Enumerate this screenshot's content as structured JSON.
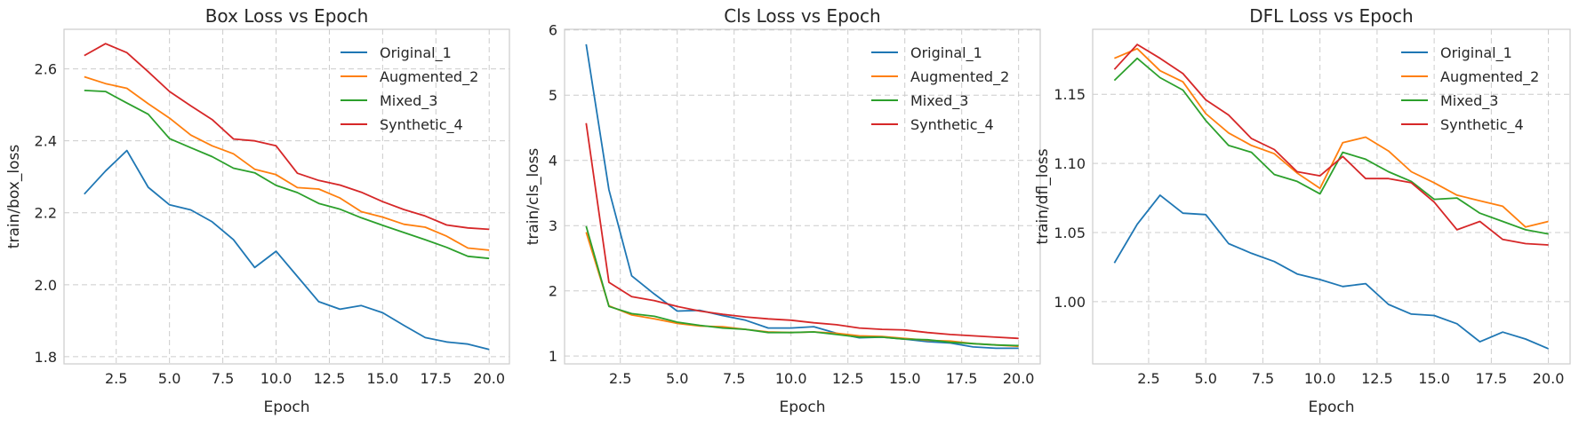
{
  "chart_data": [
    {
      "type": "line",
      "title": "Box Loss vs Epoch",
      "xlabel": "Epoch",
      "ylabel": "train/box_loss",
      "xlim": [
        0.05,
        20.95
      ],
      "ylim": [
        1.78,
        2.71
      ],
      "xticks": [
        2.5,
        5.0,
        7.5,
        10.0,
        12.5,
        15.0,
        17.5,
        20.0
      ],
      "xtick_labels": [
        "2.5",
        "5.0",
        "7.5",
        "10.0",
        "12.5",
        "15.0",
        "17.5",
        "20.0"
      ],
      "yticks": [
        1.8,
        2.0,
        2.2,
        2.4,
        2.6
      ],
      "ytick_labels": [
        "1.8",
        "2.0",
        "2.2",
        "2.4",
        "2.6"
      ],
      "grid": true,
      "legend_position": "top-right",
      "x": [
        1,
        2,
        3,
        4,
        5,
        6,
        7,
        8,
        9,
        10,
        11,
        12,
        13,
        14,
        15,
        16,
        17,
        18,
        19,
        20
      ],
      "series": [
        {
          "name": "Original_1",
          "color": "#1f77b4",
          "values": [
            2.252,
            2.316,
            2.373,
            2.271,
            2.222,
            2.208,
            2.175,
            2.125,
            2.048,
            2.093,
            2.023,
            1.953,
            1.932,
            1.942,
            1.922,
            1.887,
            1.853,
            1.841,
            1.835,
            1.82
          ]
        },
        {
          "name": "Augmented_2",
          "color": "#ff7f0e",
          "values": [
            2.578,
            2.559,
            2.546,
            2.503,
            2.463,
            2.416,
            2.386,
            2.364,
            2.321,
            2.306,
            2.27,
            2.266,
            2.241,
            2.203,
            2.188,
            2.168,
            2.16,
            2.135,
            2.102,
            2.096
          ]
        },
        {
          "name": "Mixed_3",
          "color": "#2ca02c",
          "values": [
            2.54,
            2.537,
            2.505,
            2.474,
            2.406,
            2.381,
            2.356,
            2.324,
            2.311,
            2.276,
            2.256,
            2.226,
            2.21,
            2.186,
            2.165,
            2.145,
            2.125,
            2.104,
            2.079,
            2.073
          ]
        },
        {
          "name": "Synthetic_4",
          "color": "#d62728",
          "values": [
            2.637,
            2.67,
            2.645,
            2.592,
            2.537,
            2.497,
            2.459,
            2.405,
            2.4,
            2.386,
            2.31,
            2.29,
            2.277,
            2.257,
            2.231,
            2.209,
            2.191,
            2.166,
            2.158,
            2.154
          ]
        }
      ]
    },
    {
      "type": "line",
      "title": "Cls Loss vs Epoch",
      "xlabel": "Epoch",
      "ylabel": "train/cls_loss",
      "xlim": [
        0.05,
        20.95
      ],
      "ylim": [
        0.88,
        6.01
      ],
      "xticks": [
        2.5,
        5.0,
        7.5,
        10.0,
        12.5,
        15.0,
        17.5,
        20.0
      ],
      "xtick_labels": [
        "2.5",
        "5.0",
        "7.5",
        "10.0",
        "12.5",
        "15.0",
        "17.5",
        "20.0"
      ],
      "yticks": [
        1,
        2,
        3,
        4,
        5,
        6
      ],
      "ytick_labels": [
        "1",
        "2",
        "3",
        "4",
        "5",
        "6"
      ],
      "grid": true,
      "legend_position": "top-right",
      "x": [
        1,
        2,
        3,
        4,
        5,
        6,
        7,
        8,
        9,
        10,
        11,
        12,
        13,
        14,
        15,
        16,
        17,
        18,
        19,
        20
      ],
      "series": [
        {
          "name": "Original_1",
          "color": "#1f77b4",
          "values": [
            5.78,
            3.55,
            2.23,
            1.95,
            1.69,
            1.7,
            1.62,
            1.55,
            1.43,
            1.43,
            1.45,
            1.35,
            1.28,
            1.29,
            1.26,
            1.22,
            1.2,
            1.14,
            1.12,
            1.12
          ]
        },
        {
          "name": "Augmented_2",
          "color": "#ff7f0e",
          "values": [
            2.9,
            1.77,
            1.63,
            1.57,
            1.5,
            1.46,
            1.45,
            1.41,
            1.37,
            1.36,
            1.37,
            1.35,
            1.31,
            1.3,
            1.27,
            1.24,
            1.23,
            1.19,
            1.17,
            1.15
          ]
        },
        {
          "name": "Mixed_3",
          "color": "#2ca02c",
          "values": [
            2.99,
            1.76,
            1.65,
            1.61,
            1.52,
            1.47,
            1.43,
            1.41,
            1.36,
            1.36,
            1.37,
            1.33,
            1.29,
            1.29,
            1.26,
            1.25,
            1.21,
            1.19,
            1.17,
            1.16
          ]
        },
        {
          "name": "Synthetic_4",
          "color": "#d62728",
          "values": [
            4.57,
            2.13,
            1.91,
            1.85,
            1.76,
            1.69,
            1.64,
            1.6,
            1.57,
            1.55,
            1.51,
            1.48,
            1.43,
            1.41,
            1.4,
            1.36,
            1.33,
            1.31,
            1.29,
            1.27
          ]
        }
      ]
    },
    {
      "type": "line",
      "title": "DFL Loss vs Epoch",
      "xlabel": "Epoch",
      "ylabel": "train/dfl_loss",
      "xlim": [
        0.05,
        20.95
      ],
      "ylim": [
        0.955,
        1.197
      ],
      "xticks": [
        2.5,
        5.0,
        7.5,
        10.0,
        12.5,
        15.0,
        17.5,
        20.0
      ],
      "xtick_labels": [
        "2.5",
        "5.0",
        "7.5",
        "10.0",
        "12.5",
        "15.0",
        "17.5",
        "20.0"
      ],
      "yticks": [
        1.0,
        1.05,
        1.1,
        1.15
      ],
      "ytick_labels": [
        "1.00",
        "1.05",
        "1.10",
        "1.15"
      ],
      "grid": true,
      "legend_position": "top-right",
      "x": [
        1,
        2,
        3,
        4,
        5,
        6,
        7,
        8,
        9,
        10,
        11,
        12,
        13,
        14,
        15,
        16,
        17,
        18,
        19,
        20
      ],
      "series": [
        {
          "name": "Original_1",
          "color": "#1f77b4",
          "values": [
            1.028,
            1.056,
            1.077,
            1.064,
            1.063,
            1.042,
            1.035,
            1.029,
            1.02,
            1.016,
            1.011,
            1.013,
            0.998,
            0.991,
            0.99,
            0.984,
            0.971,
            0.978,
            0.973,
            0.966
          ]
        },
        {
          "name": "Augmented_2",
          "color": "#ff7f0e",
          "values": [
            1.176,
            1.183,
            1.167,
            1.159,
            1.136,
            1.122,
            1.113,
            1.107,
            1.093,
            1.082,
            1.115,
            1.119,
            1.109,
            1.094,
            1.086,
            1.077,
            1.073,
            1.069,
            1.054,
            1.058
          ]
        },
        {
          "name": "Mixed_3",
          "color": "#2ca02c",
          "values": [
            1.16,
            1.176,
            1.162,
            1.153,
            1.131,
            1.113,
            1.108,
            1.092,
            1.087,
            1.078,
            1.108,
            1.103,
            1.094,
            1.087,
            1.074,
            1.075,
            1.064,
            1.058,
            1.052,
            1.049
          ]
        },
        {
          "name": "Synthetic_4",
          "color": "#d62728",
          "values": [
            1.168,
            1.186,
            1.176,
            1.165,
            1.146,
            1.135,
            1.118,
            1.11,
            1.094,
            1.091,
            1.105,
            1.089,
            1.089,
            1.086,
            1.072,
            1.052,
            1.058,
            1.045,
            1.042,
            1.041
          ]
        }
      ]
    }
  ]
}
